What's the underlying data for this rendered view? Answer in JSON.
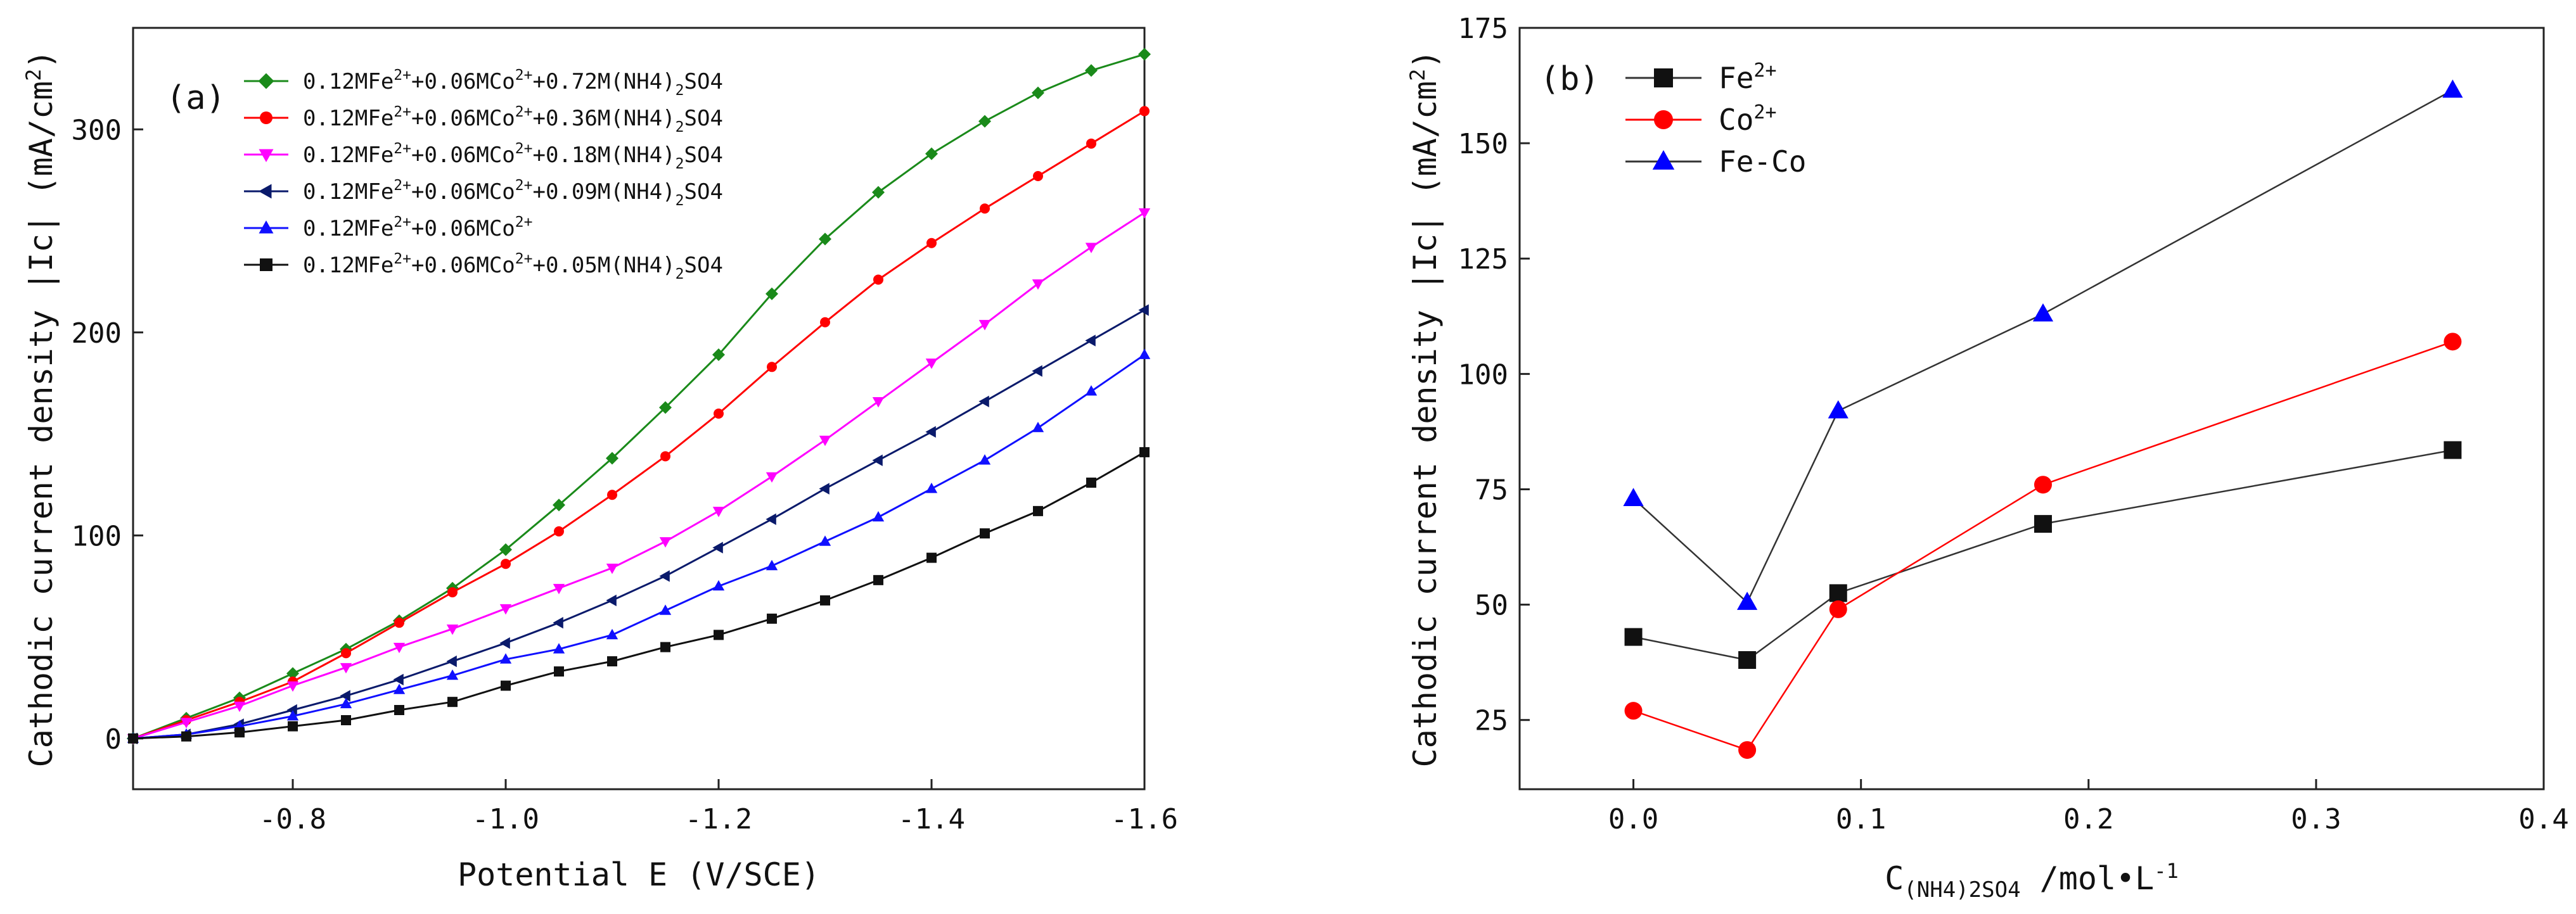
{
  "chart_data": [
    {
      "type": "line",
      "panel_label": "(a)",
      "title": "",
      "xlabel": "Potential E (V/SCE)",
      "ylabel": "Cathodic current density |Ic| (mA/cm²)",
      "ylabel_parts": {
        "main": "Cathodic current density |Ic| (mA/cm",
        "sup": "2",
        "end": ")"
      },
      "xlim": [
        -0.65,
        -1.6
      ],
      "ylim": [
        -25,
        350
      ],
      "x_ticks": [
        -0.8,
        -1.0,
        -1.2,
        -1.4,
        -1.6
      ],
      "x_tick_labels": [
        "-0.8",
        "-1.0",
        "-1.2",
        "-1.4",
        "-1.6"
      ],
      "y_ticks": [
        0,
        100,
        200,
        300
      ],
      "y_tick_labels": [
        "0",
        "100",
        "200",
        "300"
      ],
      "grid": false,
      "legend_position": "top-left",
      "x": [
        -0.65,
        -0.7,
        -0.75,
        -0.8,
        -0.85,
        -0.9,
        -0.95,
        -1.0,
        -1.05,
        -1.1,
        -1.15,
        -1.2,
        -1.25,
        -1.3,
        -1.35,
        -1.4,
        -1.45,
        -1.5,
        -1.55,
        -1.6
      ],
      "series": [
        {
          "name": "0.12MFe2++0.06MCo2++0.72M(NH4)2SO4",
          "label_parts": {
            "a": "0.12MFe",
            "s1": "2+",
            "b": "+0.06MCo",
            "s2": "2+",
            "c": "+0.72M(NH4)",
            "sub": "2",
            "d": "SO4"
          },
          "color": "#1a8a1a",
          "marker": "diamond",
          "values": [
            0,
            10,
            20,
            32,
            44,
            58,
            74,
            93,
            115,
            138,
            163,
            189,
            219,
            246,
            269,
            288,
            304,
            318,
            329,
            337
          ]
        },
        {
          "name": "0.12MFe2++0.06MCo2++0.36M(NH4)2SO4",
          "label_parts": {
            "a": "0.12MFe",
            "s1": "2+",
            "b": "+0.06MCo",
            "s2": "2+",
            "c": "+0.36M(NH4)",
            "sub": "2",
            "d": "SO4"
          },
          "color": "#ff0000",
          "marker": "circle",
          "values": [
            0,
            9,
            18,
            28,
            42,
            57,
            72,
            86,
            102,
            120,
            139,
            160,
            183,
            205,
            226,
            244,
            261,
            277,
            293,
            309
          ]
        },
        {
          "name": "0.12MFe2++0.06MCo2++0.18M(NH4)2SO4",
          "label_parts": {
            "a": "0.12MFe",
            "s1": "2+",
            "b": "+0.06MCo",
            "s2": "2+",
            "c": "+0.18M(NH4)",
            "sub": "2",
            "d": "SO4"
          },
          "color": "#ff00ff",
          "marker": "triangle-down",
          "values": [
            0,
            8,
            16,
            26,
            35,
            45,
            54,
            64,
            74,
            84,
            97,
            112,
            129,
            147,
            166,
            185,
            204,
            224,
            242,
            259
          ]
        },
        {
          "name": "0.12MFe2++0.06MCo2++0.09M(NH4)2SO4",
          "label_parts": {
            "a": "0.12MFe",
            "s1": "2+",
            "b": "+0.06MCo",
            "s2": "2+",
            "c": "+0.09M(NH4)",
            "sub": "2",
            "d": "SO4"
          },
          "color": "#0a1a6b",
          "marker": "triangle-left",
          "values": [
            0,
            2,
            7,
            14,
            21,
            29,
            38,
            47,
            57,
            68,
            80,
            94,
            108,
            123,
            137,
            151,
            166,
            181,
            196,
            211
          ]
        },
        {
          "name": "0.12MFe2++0.06MCo2+",
          "label_parts": {
            "a": "0.12MFe",
            "s1": "2+",
            "b": "+0.06MCo",
            "s2": "2+",
            "c": "",
            "sub": "",
            "d": ""
          },
          "color": "#1010ff",
          "marker": "triangle-up",
          "values": [
            0,
            2,
            6,
            11,
            17,
            24,
            31,
            39,
            44,
            51,
            63,
            75,
            85,
            97,
            109,
            123,
            137,
            153,
            171,
            189
          ]
        },
        {
          "name": "0.12MFe2++0.06MCo2++0.05M(NH4)2SO4",
          "label_parts": {
            "a": "0.12MFe",
            "s1": "2+",
            "b": "+0.06MCo",
            "s2": "2+",
            "c": "+0.05M(NH4)",
            "sub": "2",
            "d": "SO4"
          },
          "color": "#111111",
          "marker": "square",
          "values": [
            0,
            1,
            3,
            6,
            9,
            14,
            18,
            26,
            33,
            38,
            45,
            51,
            59,
            68,
            78,
            89,
            101,
            112,
            126,
            141
          ]
        }
      ]
    },
    {
      "type": "line",
      "panel_label": "(b)",
      "title": "",
      "xlabel": "C(NH4)2SO4 /mol·L-1",
      "xlabel_parts": {
        "main": "C",
        "sub": "(NH4)2SO4",
        "mid": " /mol•L",
        "sup": "-1"
      },
      "ylabel": "Cathodic current density |Ic| (mA/cm²)",
      "ylabel_parts": {
        "main": "Cathodic current density |Ic| (mA/cm",
        "sup": "2",
        "end": ")"
      },
      "xlim": [
        -0.05,
        0.4
      ],
      "ylim": [
        10,
        175
      ],
      "x_ticks": [
        0.0,
        0.1,
        0.2,
        0.3,
        0.4
      ],
      "x_tick_labels": [
        "0.0",
        "0.1",
        "0.2",
        "0.3",
        "0.4"
      ],
      "y_ticks": [
        25,
        50,
        75,
        100,
        125,
        150,
        175
      ],
      "y_tick_labels": [
        "25",
        "50",
        "75",
        "100",
        "125",
        "150",
        "175"
      ],
      "grid": false,
      "legend_position": "top-left",
      "x": [
        0.0,
        0.05,
        0.09,
        0.18,
        0.36
      ],
      "series": [
        {
          "name": "Fe2+",
          "label_parts": {
            "a": "Fe",
            "s1": "2+"
          },
          "color": "#111111",
          "line_color": "#333333",
          "marker": "square",
          "values": [
            43,
            38,
            52.5,
            67.5,
            83.5
          ]
        },
        {
          "name": "Co2+",
          "label_parts": {
            "a": "Co",
            "s1": "2+"
          },
          "color": "#ff0000",
          "line_color": "#ff0000",
          "marker": "circle",
          "values": [
            27,
            18.5,
            49,
            76,
            107
          ]
        },
        {
          "name": "Fe-Co",
          "label_parts": {
            "a": "Fe-Co",
            "s1": ""
          },
          "color": "#0000ff",
          "line_color": "#333333",
          "marker": "triangle-up",
          "values": [
            73,
            50.5,
            92,
            113,
            161.5
          ]
        }
      ]
    }
  ]
}
